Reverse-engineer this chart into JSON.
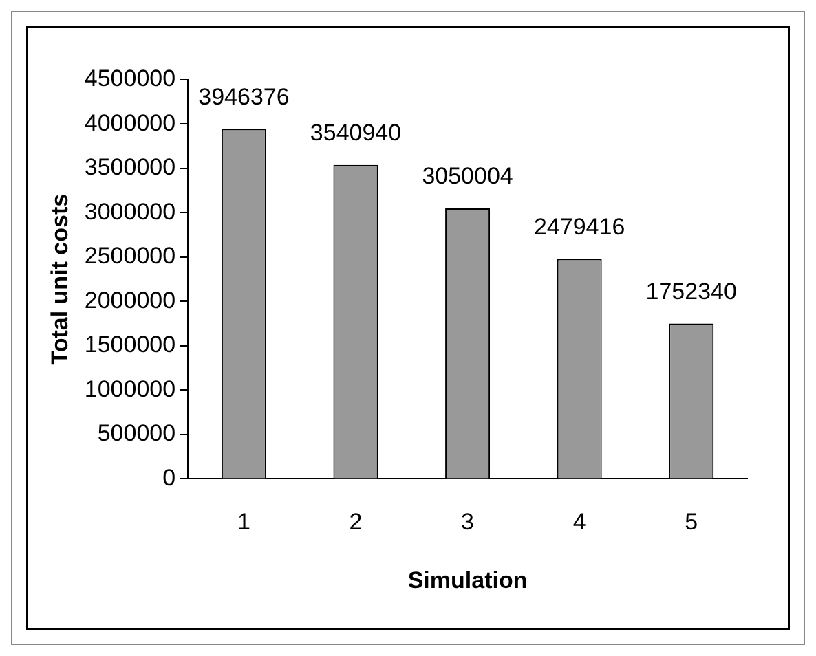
{
  "chart_data": {
    "type": "bar",
    "xlabel": "Simulation",
    "ylabel": "Total unit costs",
    "categories": [
      "1",
      "2",
      "3",
      "4",
      "5"
    ],
    "values": [
      3946376,
      3540940,
      3050004,
      2479416,
      1752340
    ],
    "color": "#999999",
    "ylim": [
      0,
      4500000
    ],
    "yticks": [
      0,
      500000,
      1000000,
      1500000,
      2000000,
      2500000,
      3000000,
      3500000,
      4000000,
      4500000
    ],
    "grid": false,
    "legend": false,
    "data_labels": true
  }
}
